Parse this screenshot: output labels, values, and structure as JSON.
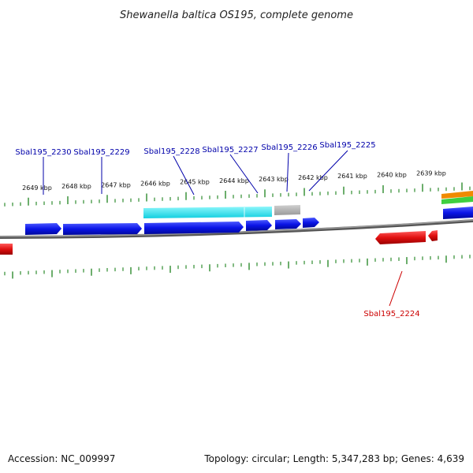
{
  "title": "Shewanella baltica OS195, complete genome",
  "footer": {
    "accession": "Accession: NC_009997",
    "summary": "Topology: circular; Length: 5,347,283 bp; Genes: 4,639"
  },
  "colors": {
    "backbone": "#7a7a7a",
    "tick": "#2e8b2e",
    "forward_gene": "#0a14e6",
    "reverse_gene": "#e01010",
    "forward_label": "#0000aa",
    "reverse_label": "#cc0000",
    "cds_band": "#19e0ea",
    "gray_band": "#aaaaaa",
    "orange_band": "#f08a00",
    "green_band": "#3fcf3f"
  },
  "scale": {
    "labels": [
      "2649 kbp",
      "2648 kbp",
      "2647 kbp",
      "2646 kbp",
      "2645 kbp",
      "2644 kbp",
      "2643 kbp",
      "2642 kbp",
      "2641 kbp",
      "2640 kbp",
      "2639 kbp"
    ]
  },
  "gene_labels": [
    {
      "text": "Sbal195_2230",
      "strand": "forward"
    },
    {
      "text": "Sbal195_2229",
      "strand": "forward"
    },
    {
      "text": "Sbal195_2228",
      "strand": "forward"
    },
    {
      "text": "Sbal195_2227",
      "strand": "forward"
    },
    {
      "text": "Sbal195_2226",
      "strand": "forward"
    },
    {
      "text": "Sbal195_2225",
      "strand": "forward"
    },
    {
      "text": "Sbal195_2224",
      "strand": "reverse"
    }
  ],
  "icons": [
    "genome-backbone",
    "gene-arrow",
    "tick-mark"
  ]
}
